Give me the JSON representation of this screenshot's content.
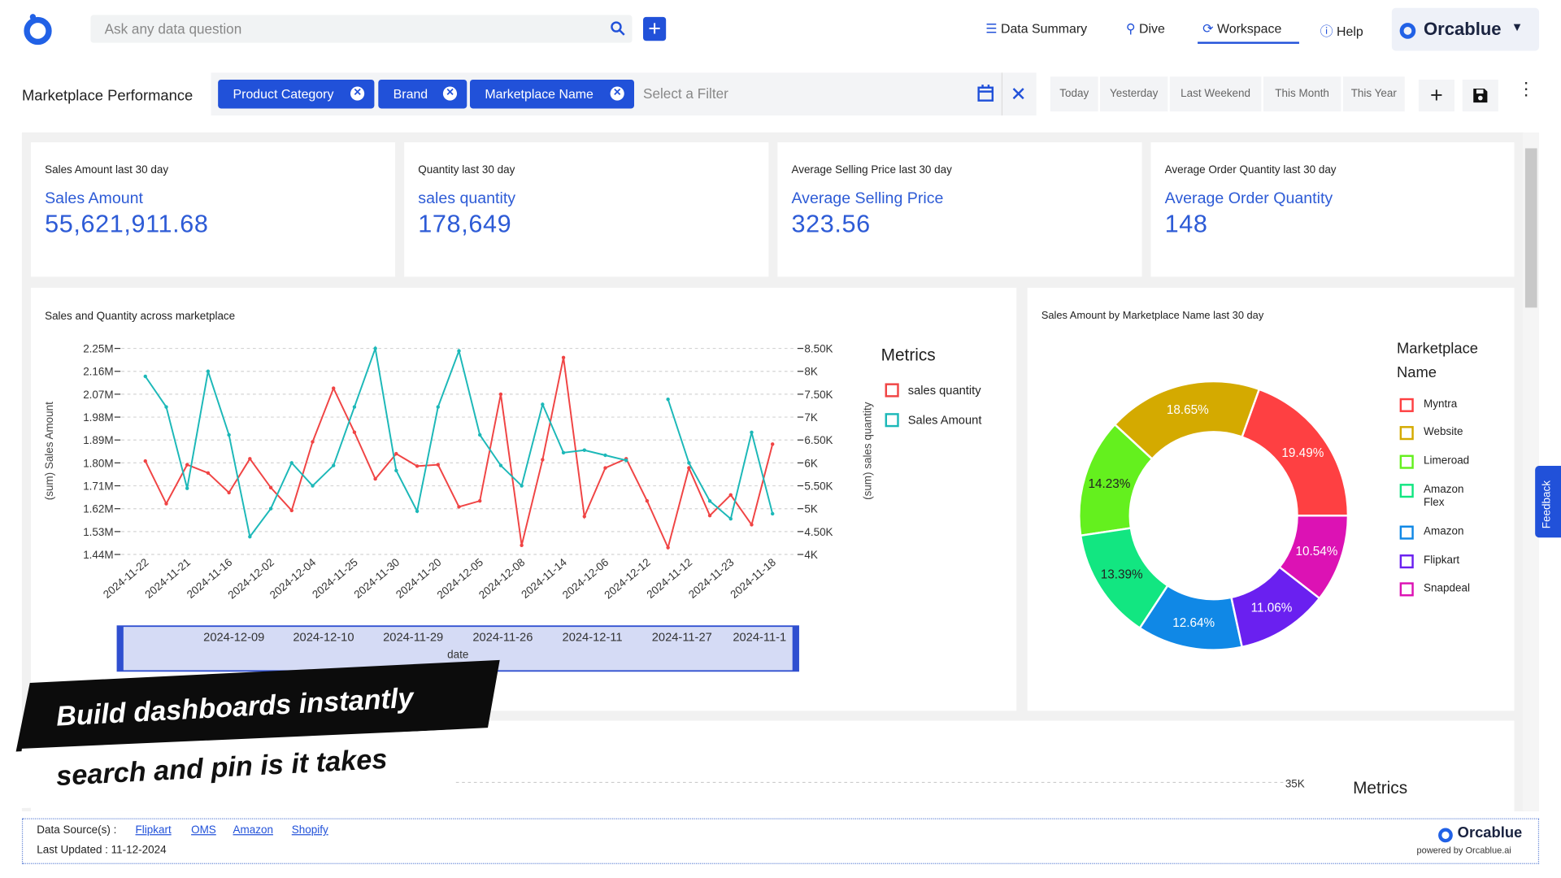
{
  "header": {
    "search_placeholder": "Ask any data question",
    "nav": [
      "Data Summary",
      "Dive",
      "Workspace",
      "Help"
    ],
    "brand": "Orcablue"
  },
  "toolbar": {
    "title": "Marketplace Performance",
    "filters": [
      "Product Category",
      "Brand",
      "Marketplace Name"
    ],
    "filter_placeholder": "Select a Filter",
    "date_ranges": [
      "Today",
      "Yesterday",
      "Last Weekend",
      "This Month",
      "This Year"
    ]
  },
  "kpis": [
    {
      "title": "Sales Amount last 30 day",
      "label": "Sales Amount",
      "value": "55,621,911.68"
    },
    {
      "title": "Quantity last 30 day",
      "label": "sales quantity",
      "value": "178,649"
    },
    {
      "title": "Average Selling Price last 30 day",
      "label": "Average Selling Price",
      "value": "323.56"
    },
    {
      "title": "Average Order Quantity last 30 day",
      "label": "Average Order Quantity",
      "value": "148"
    }
  ],
  "chart_data": [
    {
      "type": "line",
      "title": "Sales and Quantity across marketplace",
      "y_label": "(sum) Sales Amount",
      "y2_label": "(sum) sales quantity",
      "legend_title": "Metrics",
      "grid": true,
      "categories": [
        "2024-11-22",
        null,
        "2024-11-21",
        null,
        "2024-11-16",
        null,
        "2024-12-02",
        null,
        "2024-12-04",
        null,
        "2024-11-25",
        null,
        "2024-11-30",
        null,
        "2024-11-20",
        null,
        "2024-12-05",
        null,
        "2024-12-08",
        null,
        "2024-11-14",
        null,
        "2024-12-06",
        null,
        "2024-12-12",
        null,
        "2024-11-12",
        null,
        "2024-11-23",
        null,
        "2024-11-18"
      ],
      "ylim": [
        1440000,
        2250000
      ],
      "yticks": [
        {
          "value": 1440000,
          "label": "1.44M"
        },
        {
          "value": 1530000,
          "label": "1.53M"
        },
        {
          "value": 1620000,
          "label": "1.62M"
        },
        {
          "value": 1710000,
          "label": "1.71M"
        },
        {
          "value": 1800000,
          "label": "1.80M"
        },
        {
          "value": 1890000,
          "label": "1.89M"
        },
        {
          "value": 1980000,
          "label": "1.98M"
        },
        {
          "value": 2070000,
          "label": "2.07M"
        },
        {
          "value": 2160000,
          "label": "2.16M"
        },
        {
          "value": 2250000,
          "label": "2.25M"
        }
      ],
      "y2lim": [
        4000,
        8500
      ],
      "y2ticks": [
        {
          "value": 4000,
          "label": "4K"
        },
        {
          "value": 4500,
          "label": "4.50K"
        },
        {
          "value": 5000,
          "label": "5K"
        },
        {
          "value": 5500,
          "label": "5.50K"
        },
        {
          "value": 6000,
          "label": "6K"
        },
        {
          "value": 6500,
          "label": "6.50K"
        },
        {
          "value": 7000,
          "label": "7K"
        },
        {
          "value": 7500,
          "label": "7.50K"
        },
        {
          "value": 8000,
          "label": "8K"
        },
        {
          "value": 8500,
          "label": "8.50K"
        }
      ],
      "series": [
        {
          "name": "sales quantity",
          "color": "#f04444",
          "axis": "y2",
          "values": [
            6040,
            5110,
            5960,
            5780,
            5350,
            6090,
            5460,
            4960,
            6460,
            7630,
            6670,
            5650,
            6200,
            5930,
            5960,
            5040,
            5170,
            7500,
            4200,
            6070,
            8300,
            4830,
            5890,
            6090,
            5170,
            4150,
            5890,
            4850,
            5300,
            4650,
            6410
          ]
        },
        {
          "name": "Sales Amount",
          "color": "#1cb8b8",
          "values": [
            2140000,
            2020000,
            1700000,
            2160000,
            1910000,
            1510000,
            1620000,
            1800000,
            1710000,
            1790000,
            2020000,
            2250000,
            1770000,
            1610000,
            2020000,
            2240000,
            1910000,
            1790000,
            1710000,
            2030000,
            1840000,
            1850000,
            1830000,
            1810000,
            null,
            2050000,
            1800000,
            1650000,
            1580000,
            1920000,
            1600000
          ]
        }
      ],
      "range_slider": {
        "labels": [
          "2024-12-09",
          "2024-12-10",
          "2024-11-29",
          "2024-11-26",
          "2024-12-11",
          "2024-11-27",
          "2024-11-1"
        ],
        "title": "date"
      }
    },
    {
      "type": "pie",
      "title": "Sales Amount by Marketplace Name last 30 day",
      "legend_title": "Marketplace Name",
      "categories": [
        "Myntra",
        "Website",
        "Limeroad",
        "Amazon Flex",
        "Amazon",
        "Flipkart",
        "Snapdeal"
      ],
      "values": [
        19.49,
        18.65,
        14.23,
        13.39,
        12.64,
        11.06,
        10.54
      ],
      "value_labels": [
        "19.49%",
        "18.65%",
        "14.23%",
        "13.39%",
        "12.64%",
        "11.06%",
        "10.54%"
      ],
      "colors": [
        "#fe4042",
        "#d4aa00",
        "#64f01e",
        "#12e681",
        "#1088e6",
        "#6a20f0",
        "#dc12b4"
      ]
    }
  ],
  "partial_chart": {
    "tick": "35K",
    "legend_title": "Metrics"
  },
  "banner": [
    "Build dashboards instantly",
    "search and pin is it takes"
  ],
  "feedback": "Feedback",
  "footer": {
    "sources_label": "Data Source(s) :",
    "sources": [
      "Flipkart",
      "OMS",
      "Amazon",
      "Shopify"
    ],
    "last_updated": "Last Updated : 11-12-2024",
    "brand": "Orcablue",
    "powered": "powered by Orcablue.ai"
  }
}
